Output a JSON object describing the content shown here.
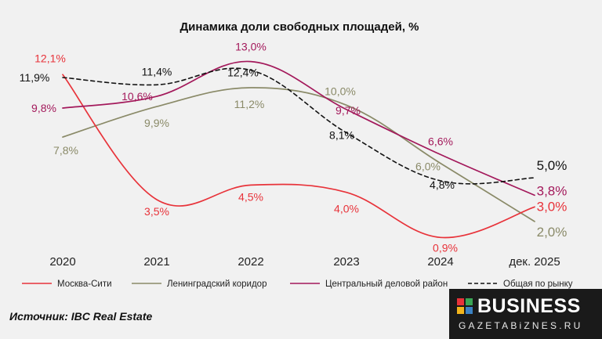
{
  "chart_data": {
    "type": "line",
    "title": "Динамика доли свободных площадей, %",
    "categories": [
      "2020",
      "2021",
      "2022",
      "2023",
      "2024",
      "дек. 2025"
    ],
    "xlabel": "",
    "ylabel": "",
    "ylim": [
      0,
      14
    ],
    "grid": false,
    "legend_position": "bottom",
    "series": [
      {
        "name": "Москва-Сити",
        "color": "#e8333a",
        "style": "solid",
        "values": [
          12.1,
          3.5,
          4.5,
          4.0,
          0.9,
          3.0
        ],
        "labels": [
          "12,1%",
          "3,5%",
          "4,5%",
          "4,0%",
          "0,9%",
          "3,0%"
        ]
      },
      {
        "name": "Ленинградский коридор",
        "color": "#8a8a68",
        "style": "solid",
        "values": [
          7.8,
          9.9,
          11.2,
          10.0,
          6.0,
          2.0
        ],
        "labels": [
          "7,8%",
          "9,9%",
          "11,2%",
          "10,0%",
          "6,0%",
          "2,0%"
        ]
      },
      {
        "name": "Центральный деловой район",
        "color": "#a3195b",
        "style": "solid",
        "values": [
          9.8,
          10.6,
          13.0,
          9.7,
          6.6,
          3.8
        ],
        "labels": [
          "9,8%",
          "10,6%",
          "13,0%",
          "9,7%",
          "6,6%",
          "3,8%"
        ]
      },
      {
        "name": "Общая по рынку",
        "color": "#111111",
        "style": "dashed",
        "values": [
          11.9,
          11.4,
          12.4,
          8.1,
          4.8,
          5.0
        ],
        "labels": [
          "11,9%",
          "11,4%",
          "12,4%",
          "8,1%",
          "4,8%",
          "5,0%"
        ]
      }
    ]
  },
  "source": "Источник: IBC Real Estate",
  "logo": {
    "name": "BUSINESS",
    "subtitle": "GAZETABiZNES.RU",
    "colors": [
      "#e8333a",
      "#3aa655",
      "#f2b51c",
      "#3b82c4"
    ]
  }
}
